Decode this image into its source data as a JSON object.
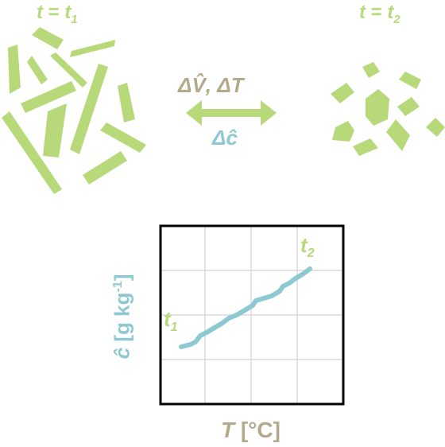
{
  "state_left": {
    "var": "t",
    "eq": " = ",
    "sym": "t",
    "sub": "1"
  },
  "state_right": {
    "var": "t",
    "eq": " = ",
    "sym": "t",
    "sub": "2"
  },
  "change_label": {
    "text": "ΔV̂, ΔT"
  },
  "concentration_change_label": {
    "text": "Δĉ"
  },
  "plot": {
    "y_axis": {
      "sym": "ĉ",
      "units_open": " [g kg",
      "units_exp": "-1",
      "units_close": "]"
    },
    "x_axis": {
      "sym": "T",
      "units": " [°C]"
    },
    "start_marker": {
      "sym": "t",
      "sub": "1"
    },
    "end_marker": {
      "sym": "t",
      "sub": "2"
    }
  },
  "colors": {
    "crystal": "#b7d97a",
    "change": "#b3a98b",
    "concentration": "#8ec9d2",
    "grid": "#d9d9d9",
    "frame": "#000000"
  },
  "icons": {
    "double_arrow": "double-arrow-icon",
    "crystals": "crystal-shapes"
  }
}
